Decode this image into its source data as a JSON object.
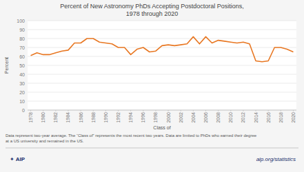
{
  "chart_data": {
    "type": "line",
    "title": "Percent of New Astronomy PhDs Accepting Postdoctoral Positions,",
    "subtitle": "1978 through 2020",
    "xlabel": "Class of",
    "ylabel": "Percent",
    "x": [
      1978,
      1979,
      1980,
      1981,
      1982,
      1983,
      1984,
      1985,
      1986,
      1987,
      1988,
      1989,
      1990,
      1991,
      1992,
      1993,
      1994,
      1995,
      1996,
      1997,
      1998,
      1999,
      2000,
      2001,
      2002,
      2003,
      2004,
      2005,
      2006,
      2007,
      2008,
      2009,
      2010,
      2011,
      2012,
      2013,
      2014,
      2015,
      2016,
      2017,
      2018,
      2019,
      2020
    ],
    "values": [
      61,
      64,
      62,
      62,
      64,
      66,
      67,
      75,
      75,
      80,
      80,
      76,
      75,
      74,
      70,
      70,
      62,
      68,
      70,
      65,
      66,
      72,
      73,
      72,
      73,
      74,
      82,
      74,
      82,
      75,
      78,
      77,
      76,
      75,
      76,
      74,
      55,
      54,
      55,
      70,
      70,
      68,
      65
    ],
    "color": "#e87722",
    "xlim": [
      1977.5,
      2020.5
    ],
    "xticks": [
      1978,
      1980,
      1982,
      1984,
      1986,
      1988,
      1990,
      1992,
      1994,
      1996,
      1998,
      2000,
      2002,
      2004,
      2006,
      2008,
      2010,
      2012,
      2014,
      2016,
      2018,
      2020
    ],
    "ylim": [
      0,
      100
    ],
    "yticks": [
      0,
      10,
      20,
      30,
      40,
      50,
      60,
      70,
      80,
      90,
      100
    ],
    "grid": true,
    "annotations": [
      "Data represent two-year average. The “Class of” represents the most recent two years. Data are limited to PhDs who earned their degree",
      "at a US university and remained in the US.",
      "✦ AIP",
      "aip.org/statistics"
    ]
  }
}
